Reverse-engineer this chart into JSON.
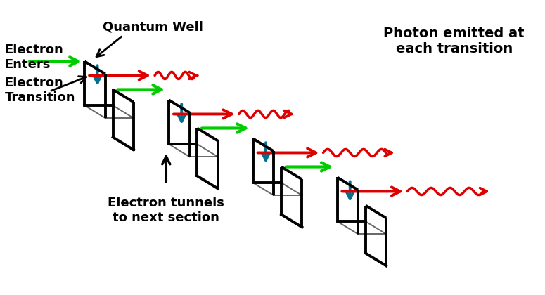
{
  "background_color": "#ffffff",
  "labels": {
    "electron_enters": "Electron\nEnters",
    "electron_transition": "Electron\nTransition",
    "quantum_well": "Quantum Well",
    "photon_emitted": "Photon emitted at\neach transition",
    "electron_tunnels": "Electron tunnels\nto next section"
  },
  "colors": {
    "black": "#000000",
    "green": "#00cc00",
    "red": "#dd0000",
    "teal": "#007090"
  },
  "figsize": [
    7.75,
    4.2
  ],
  "dpi": 100,
  "xlim": [
    0,
    10
  ],
  "ylim": [
    -4.2,
    2.8
  ]
}
